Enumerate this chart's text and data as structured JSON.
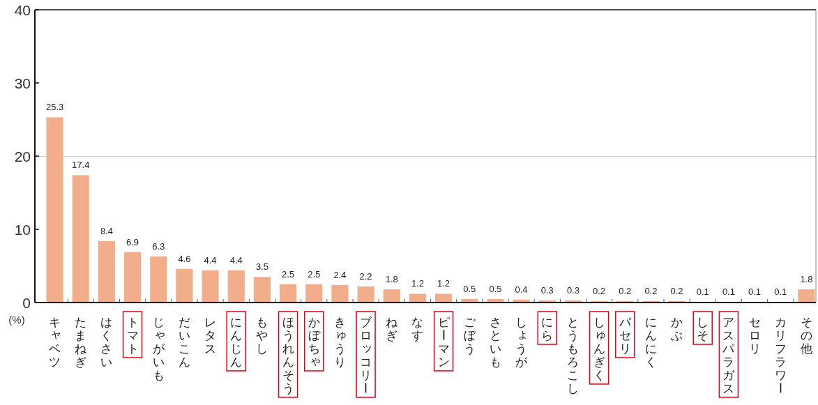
{
  "chart_data": {
    "type": "bar",
    "ylabel": "(%)",
    "categories": [
      "キャベツ",
      "たまねぎ",
      "はくさい",
      "トマト",
      "じゃがいも",
      "だいこん",
      "レタス",
      "にんじん",
      "もやし",
      "ほうれんそう",
      "かぼちゃ",
      "きゅうり",
      "ブロッコリー",
      "ねぎ",
      "なす",
      "ピーマン",
      "ごぼう",
      "さといも",
      "しょうが",
      "にら",
      "とうもろこし",
      "しゅんぎく",
      "パセリ",
      "にんにく",
      "かぶ",
      "しそ",
      "アスパラガス",
      "セロリ",
      "カリフラワー",
      "その他"
    ],
    "values": [
      25.3,
      17.4,
      8.4,
      6.9,
      6.3,
      4.6,
      4.4,
      4.4,
      3.5,
      2.5,
      2.5,
      2.4,
      2.2,
      1.8,
      1.2,
      1.2,
      0.5,
      0.5,
      0.4,
      0.3,
      0.3,
      0.2,
      0.2,
      0.2,
      0.2,
      0.1,
      0.1,
      0.1,
      0.1,
      1.8
    ],
    "color": "#f2ae8a",
    "ylim": [
      0,
      40
    ],
    "yticks": [
      0,
      10,
      20,
      30,
      40
    ],
    "ref_lines": [
      {
        "axis": "y",
        "value": 20,
        "color": "#cfcfcf"
      }
    ],
    "data_labels": true
  }
}
